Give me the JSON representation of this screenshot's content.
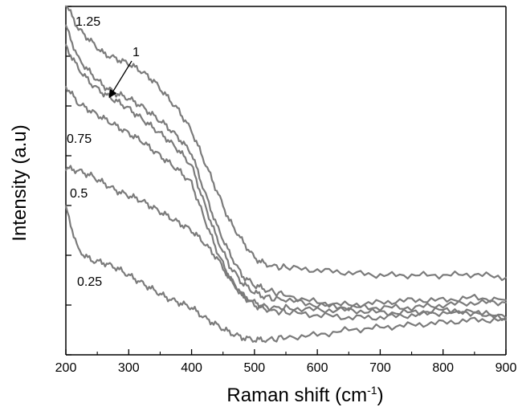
{
  "chart_data": {
    "type": "line",
    "title": "",
    "xlabel": "Raman shift (cm",
    "xlabel_superscript": "-1",
    "xlabel_close": ")",
    "ylabel": "Intensity (a.u)",
    "xlim": [
      200,
      900
    ],
    "ylim": [
      0,
      7
    ],
    "x_ticks": [
      "200",
      "300",
      "400",
      "500",
      "600",
      "700",
      "800",
      "900"
    ],
    "y_ticks_shown": false,
    "grid": false,
    "legend": "inline labels",
    "line_color": "#7b7b7b",
    "annotation_arrow": {
      "text": "1",
      "points_to_series": "1"
    },
    "series": [
      {
        "name": "1.25",
        "x": [
          200,
          220,
          240,
          260,
          280,
          300,
          320,
          340,
          360,
          380,
          400,
          420,
          440,
          460,
          480,
          500,
          520,
          550,
          600,
          650,
          700,
          750,
          800,
          850,
          900
        ],
        "y": [
          7.05,
          6.55,
          6.3,
          6.05,
          5.95,
          5.85,
          5.7,
          5.5,
          5.2,
          4.9,
          4.5,
          3.9,
          3.3,
          2.7,
          2.3,
          1.95,
          1.8,
          1.75,
          1.7,
          1.65,
          1.6,
          1.6,
          1.6,
          1.62,
          1.55
        ]
      },
      {
        "name": "1",
        "x": [
          200,
          220,
          240,
          260,
          280,
          300,
          320,
          340,
          360,
          380,
          400,
          420,
          440,
          460,
          480,
          500,
          520,
          550,
          600,
          650,
          700,
          750,
          800,
          850,
          900
        ],
        "y": [
          6.6,
          5.95,
          5.65,
          5.4,
          5.25,
          5.15,
          5.0,
          4.8,
          4.6,
          4.35,
          4.05,
          3.3,
          2.6,
          2.05,
          1.6,
          1.4,
          1.3,
          1.2,
          1.05,
          1.0,
          1.05,
          1.1,
          1.1,
          1.15,
          1.1
        ]
      },
      {
        "name": "",
        "x": [
          200,
          220,
          240,
          260,
          280,
          300,
          320,
          340,
          360,
          380,
          400,
          420,
          440,
          460,
          480,
          500,
          520,
          550,
          600,
          650,
          700,
          750,
          800,
          850,
          900
        ],
        "y": [
          6.2,
          5.75,
          5.45,
          5.25,
          5.1,
          4.95,
          4.75,
          4.55,
          4.35,
          4.1,
          3.8,
          3.05,
          2.35,
          1.8,
          1.45,
          1.25,
          1.15,
          1.1,
          1.0,
          0.95,
          0.95,
          0.95,
          1.0,
          1.05,
          1.05
        ]
      },
      {
        "name": "0.75",
        "x": [
          200,
          220,
          240,
          260,
          280,
          300,
          320,
          340,
          360,
          380,
          400,
          420,
          440,
          460,
          480,
          500,
          520,
          550,
          600,
          650,
          700,
          750,
          800,
          850,
          900
        ],
        "y": [
          5.4,
          5.05,
          4.9,
          4.75,
          4.6,
          4.45,
          4.3,
          4.1,
          3.9,
          3.7,
          3.45,
          2.75,
          2.1,
          1.55,
          1.2,
          1.05,
          0.95,
          0.95,
          0.9,
          0.9,
          0.85,
          0.85,
          0.9,
          0.85,
          0.75
        ]
      },
      {
        "name": "0.5",
        "x": [
          200,
          220,
          240,
          260,
          280,
          300,
          320,
          340,
          360,
          380,
          400,
          420,
          440,
          460,
          480,
          500,
          520,
          550,
          600,
          650,
          700,
          750,
          800,
          850,
          900
        ],
        "y": [
          3.75,
          3.7,
          3.6,
          3.45,
          3.3,
          3.2,
          3.1,
          2.95,
          2.8,
          2.65,
          2.5,
          2.25,
          1.95,
          1.55,
          1.2,
          1.0,
          0.9,
          0.85,
          0.8,
          0.75,
          0.75,
          0.8,
          0.85,
          0.85,
          0.75
        ]
      },
      {
        "name": "0.25",
        "x": [
          200,
          220,
          240,
          260,
          280,
          300,
          320,
          340,
          360,
          380,
          400,
          420,
          440,
          460,
          480,
          500,
          520,
          550,
          600,
          650,
          700,
          750,
          800,
          850,
          900
        ],
        "y": [
          2.95,
          2.1,
          1.9,
          1.85,
          1.75,
          1.6,
          1.45,
          1.3,
          1.15,
          1.05,
          0.95,
          0.75,
          0.6,
          0.45,
          0.35,
          0.3,
          0.3,
          0.35,
          0.4,
          0.5,
          0.55,
          0.6,
          0.65,
          0.7,
          0.7
        ]
      }
    ]
  }
}
